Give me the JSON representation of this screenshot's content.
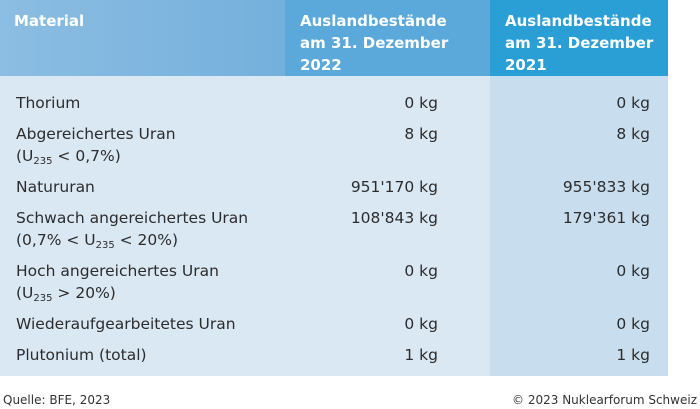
{
  "table": {
    "header": [
      "Material",
      "Auslandbestände am 31. Dezember 2022",
      "Auslandbestände am 31. Dezember 2021"
    ],
    "rows": [
      {
        "material": "Thorium",
        "v2022": "0 kg",
        "v2021": "0 kg"
      },
      {
        "material": "Abgereichertes Uran",
        "note": {
          "before": "(U",
          "sub": "235",
          "after": " < 0,7%)"
        },
        "v2022": "8 kg",
        "v2021": "8 kg"
      },
      {
        "material": "Natururan",
        "v2022": "951'170 kg",
        "v2021": "955'833 kg"
      },
      {
        "material": "Schwach angereichertes Uran",
        "note": {
          "before": "(0,7% < U",
          "sub": "235",
          "after": " < 20%)"
        },
        "v2022": "108'843 kg",
        "v2021": "179'361 kg"
      },
      {
        "material": "Hoch angereichertes Uran",
        "note": {
          "before": "(U",
          "sub": "235",
          "after": " > 20%)"
        },
        "v2022": "0 kg",
        "v2021": "0 kg"
      },
      {
        "material": "Wiederaufgearbeitetes Uran",
        "v2022": "0 kg",
        "v2021": "0 kg"
      },
      {
        "material": "Plutonium (total)",
        "v2022": "1 kg",
        "v2021": "1 kg"
      }
    ]
  },
  "footer": {
    "source": "Quelle: BFE, 2023",
    "copyright": "© 2023 Nuklearforum Schweiz"
  }
}
